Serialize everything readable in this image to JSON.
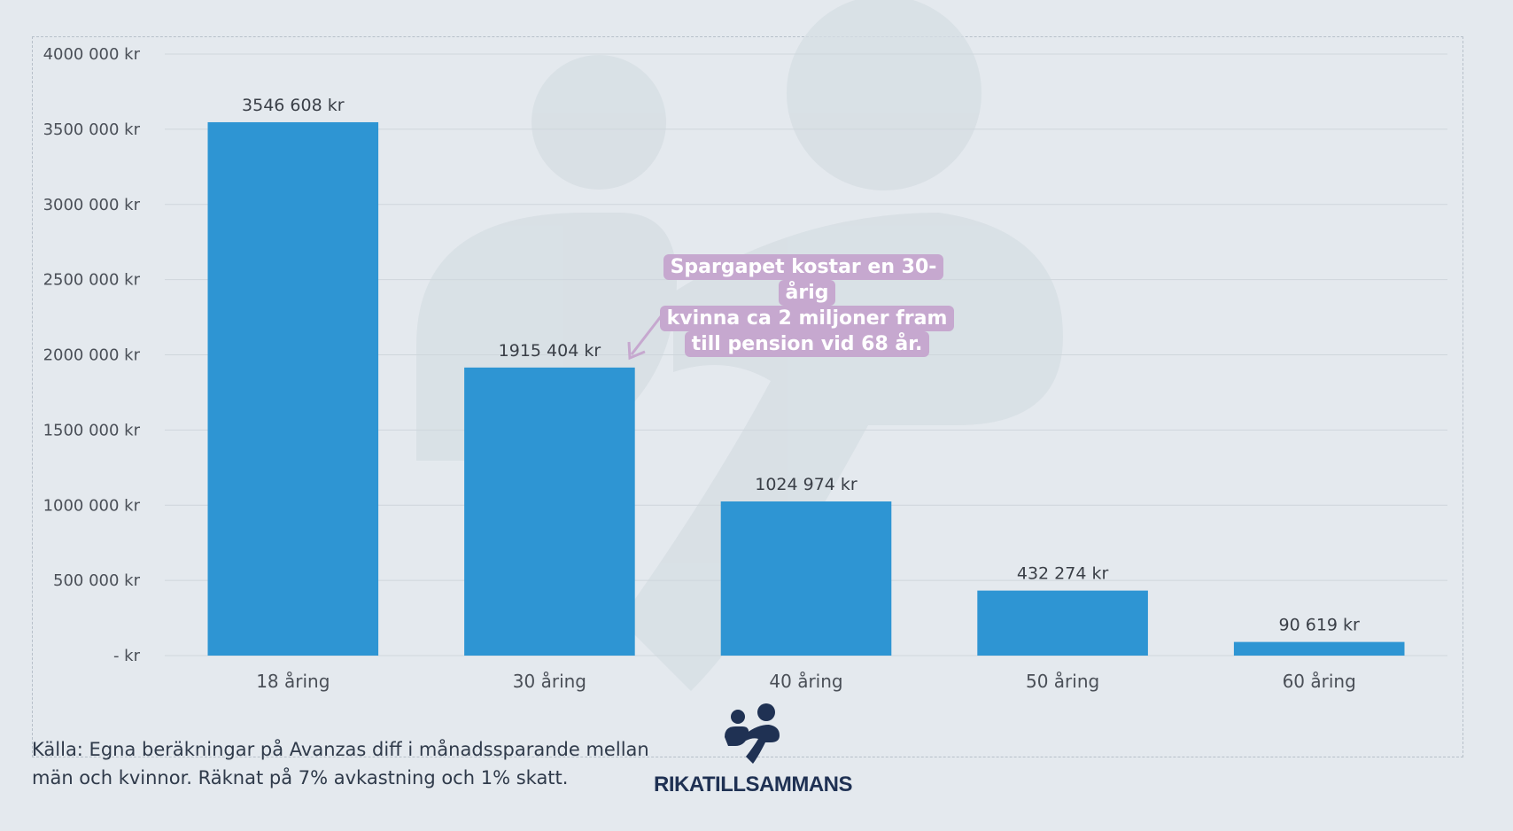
{
  "chart_data": {
    "type": "bar",
    "categories": [
      "18 åring",
      "30 åring",
      "40 åring",
      "50 åring",
      "60 åring"
    ],
    "values": [
      3546608,
      1915404,
      1024974,
      432274,
      90619
    ],
    "value_labels": [
      "3546 608 kr",
      "1915 404 kr",
      "1024 974 kr",
      "432 274 kr",
      "90 619 kr"
    ],
    "ylim": [
      0,
      4000000
    ],
    "yticks": [
      0,
      500000,
      1000000,
      1500000,
      2000000,
      2500000,
      3000000,
      3500000,
      4000000
    ],
    "ytick_labels": [
      "-   kr",
      "500 000 kr",
      "1000 000 kr",
      "1500 000 kr",
      "2000 000 kr",
      "2500 000 kr",
      "3000 000 kr",
      "3500 000 kr",
      "4000 000 kr"
    ],
    "grid": true,
    "bar_color": "#2e95d3",
    "annotation": {
      "lines": [
        "Spargapet kostar en 30-årig",
        "kvinna ca 2 miljoner fram",
        "till pension vid 68 år."
      ],
      "target_category": "30 åring",
      "color": "#c6a8cf"
    }
  },
  "source": {
    "line1": "Källa: Egna beräkningar på Avanzas diff i månadssparande mellan",
    "line2": "män och kvinnor. Räknat på 7% avkastning och 1% skatt."
  },
  "logo": {
    "text": "RIKATILLSAMMANS",
    "icon": "rikatillsammans-heart-icon",
    "color": "#1f3153"
  }
}
